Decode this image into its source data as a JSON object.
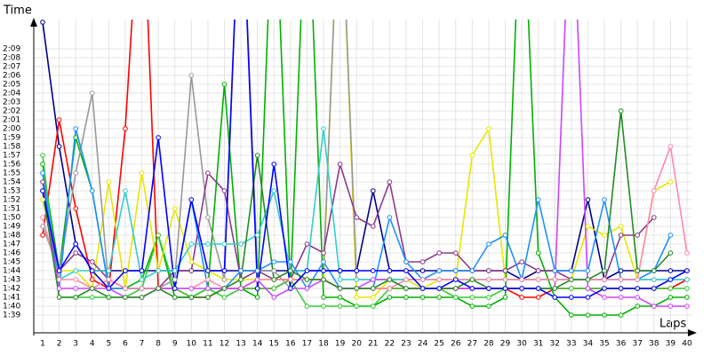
{
  "chart_data": {
    "type": "line",
    "y_label": "Time",
    "x_label": "Laps",
    "categories": [
      "1",
      "2",
      "3",
      "4",
      "5",
      "6",
      "7",
      "8",
      "9",
      "10",
      "11",
      "12",
      "13",
      "14",
      "15",
      "16",
      "17",
      "18",
      "19",
      "20",
      "21",
      "22",
      "23",
      "24",
      "25",
      "26",
      "27",
      "28",
      "29",
      "30",
      "31",
      "32",
      "33",
      "34",
      "35",
      "36",
      "37",
      "38",
      "39",
      "40"
    ],
    "ylim": [
      97,
      132
    ],
    "yticks": [
      {
        "value": 99,
        "label": "1:39"
      },
      {
        "value": 100,
        "label": "1:40"
      },
      {
        "value": 101,
        "label": "1:41"
      },
      {
        "value": 102,
        "label": "1:42"
      },
      {
        "value": 103,
        "label": "1:43"
      },
      {
        "value": 104,
        "label": "1:44"
      },
      {
        "value": 105,
        "label": "1:45"
      },
      {
        "value": 106,
        "label": "1:46"
      },
      {
        "value": 107,
        "label": "1:47"
      },
      {
        "value": 108,
        "label": "1:48"
      },
      {
        "value": 109,
        "label": "1:49"
      },
      {
        "value": 110,
        "label": "1:50"
      },
      {
        "value": 111,
        "label": "1:51"
      },
      {
        "value": 112,
        "label": "1:52"
      },
      {
        "value": 113,
        "label": "1:53"
      },
      {
        "value": 114,
        "label": "1:54"
      },
      {
        "value": 115,
        "label": "1:55"
      },
      {
        "value": 116,
        "label": "1:56"
      },
      {
        "value": 117,
        "label": "1:57"
      },
      {
        "value": 118,
        "label": "1:58"
      },
      {
        "value": 119,
        "label": "1:59"
      },
      {
        "value": 120,
        "label": "2:00"
      },
      {
        "value": 121,
        "label": "2:01"
      },
      {
        "value": 122,
        "label": "2:02"
      },
      {
        "value": 123,
        "label": "2:03"
      },
      {
        "value": 124,
        "label": "2:04"
      },
      {
        "value": 125,
        "label": "2:05"
      },
      {
        "value": 126,
        "label": "2:06"
      },
      {
        "value": 127,
        "label": "2:07"
      },
      {
        "value": 128,
        "label": "2:08"
      },
      {
        "value": 129,
        "label": "2:09"
      }
    ],
    "grid": true,
    "series": [
      {
        "color": "#00008b",
        "values": [
          132,
          118,
          107,
          104,
          104,
          104,
          104,
          104,
          104,
          104,
          104,
          104,
          104,
          104,
          104,
          104,
          104,
          104,
          104,
          104,
          113,
          104,
          104,
          104,
          104,
          104,
          104,
          104,
          104,
          103,
          104,
          104,
          104,
          112,
          103,
          104,
          104,
          104,
          104,
          104
        ]
      },
      {
        "color": "#ff0000",
        "values": [
          108,
          121,
          111,
          103,
          102,
          120,
          150,
          102,
          102,
          101,
          101,
          102,
          102,
          102,
          102,
          103,
          103,
          103,
          102,
          102,
          102,
          102,
          102,
          102,
          102,
          102,
          102,
          102,
          102,
          101,
          101,
          102,
          102,
          102,
          102,
          102,
          102,
          102,
          102,
          103
        ]
      },
      {
        "color": "#00b000",
        "values": [
          116,
          104,
          119,
          113,
          102,
          102,
          103,
          108,
          101,
          101,
          102,
          125,
          102,
          101,
          150,
          102,
          150,
          101,
          101,
          100,
          100,
          101,
          101,
          101,
          101,
          101,
          100,
          100,
          101,
          150,
          106,
          101,
          99,
          99,
          99,
          99,
          100,
          100,
          101,
          101
        ]
      },
      {
        "color": "#33cc33",
        "values": [
          117,
          101,
          101,
          101,
          101,
          101,
          102,
          108,
          102,
          101,
          102,
          101,
          102,
          102,
          102,
          103,
          100,
          100,
          100,
          100,
          100,
          102,
          102,
          102,
          102,
          101,
          101,
          101,
          102,
          102,
          102,
          102,
          102,
          102,
          102,
          102,
          102,
          102,
          102,
          102
        ]
      },
      {
        "color": "#e6e600",
        "values": [
          112,
          104,
          104,
          102,
          114,
          102,
          115,
          104,
          111,
          105,
          104,
          103,
          103,
          103,
          103,
          103,
          103,
          103,
          150,
          101,
          101,
          103,
          103,
          102,
          103,
          103,
          117,
          120,
          103,
          103,
          103,
          103,
          103,
          109,
          108,
          109,
          103,
          113,
          114,
          null
        ]
      },
      {
        "color": "#999999",
        "values": [
          109,
          104,
          115,
          124,
          102,
          102,
          102,
          102,
          103,
          126,
          110,
          103,
          150,
          104,
          104,
          102,
          104,
          104,
          150,
          103,
          103,
          103,
          103,
          103,
          103,
          103,
          103,
          103,
          103,
          103,
          103,
          103,
          103,
          103,
          103,
          103,
          103,
          103,
          103,
          103
        ]
      },
      {
        "color": "#8b3a8b",
        "values": [
          114,
          104,
          106,
          105,
          103,
          102,
          102,
          102,
          104,
          104,
          115,
          113,
          103,
          104,
          103,
          103,
          107,
          106,
          116,
          110,
          109,
          114,
          105,
          105,
          106,
          106,
          104,
          104,
          104,
          105,
          104,
          104,
          103,
          103,
          103,
          108,
          108,
          110,
          null,
          null
        ]
      },
      {
        "color": "#33cccc",
        "values": [
          115,
          103,
          104,
          104,
          104,
          113,
          103,
          104,
          104,
          107,
          107,
          107,
          107,
          108,
          113,
          104,
          104,
          120,
          103,
          103,
          103,
          103,
          103,
          103,
          103,
          103,
          103,
          103,
          103,
          103,
          103,
          103,
          103,
          103,
          103,
          103,
          103,
          103,
          103,
          103
        ]
      },
      {
        "color": "#1e90ff",
        "values": [
          115,
          102,
          120,
          113,
          102,
          102,
          102,
          102,
          102,
          112,
          102,
          102,
          104,
          104,
          105,
          105,
          102,
          105,
          102,
          102,
          102,
          110,
          105,
          103,
          104,
          104,
          104,
          107,
          108,
          103,
          112,
          104,
          104,
          104,
          112,
          103,
          103,
          104,
          108,
          null
        ]
      },
      {
        "color": "#ff88aa",
        "values": [
          110,
          103,
          103,
          102,
          103,
          102,
          102,
          102,
          102,
          102,
          103,
          102,
          102,
          103,
          103,
          103,
          103,
          103,
          102,
          102,
          102,
          102,
          103,
          103,
          103,
          103,
          103,
          103,
          103,
          103,
          103,
          103,
          103,
          103,
          103,
          103,
          103,
          113,
          118,
          106
        ]
      },
      {
        "color": "#cc44ff",
        "values": [
          113,
          102,
          102,
          102,
          102,
          101,
          101,
          102,
          102,
          102,
          102,
          102,
          102,
          103,
          101,
          102,
          102,
          103,
          102,
          102,
          103,
          103,
          102,
          102,
          102,
          102,
          102,
          102,
          102,
          102,
          102,
          102,
          150,
          102,
          101,
          101,
          101,
          100,
          100,
          100
        ]
      },
      {
        "color": "#228b22",
        "values": [
          113,
          101,
          101,
          102,
          101,
          101,
          101,
          102,
          101,
          101,
          101,
          102,
          103,
          117,
          103,
          104,
          103,
          103,
          102,
          102,
          102,
          103,
          102,
          102,
          102,
          102,
          103,
          102,
          102,
          102,
          102,
          102,
          103,
          103,
          104,
          122,
          104,
          104,
          106,
          null
        ]
      },
      {
        "color": "#0000ff",
        "values": [
          113,
          104,
          107,
          104,
          102,
          104,
          104,
          119,
          102,
          112,
          104,
          104,
          150,
          102,
          116,
          102,
          104,
          104,
          104,
          104,
          104,
          104,
          104,
          102,
          102,
          103,
          102,
          102,
          102,
          102,
          102,
          101,
          101,
          101,
          102,
          102,
          102,
          102,
          103,
          104
        ]
      }
    ]
  }
}
